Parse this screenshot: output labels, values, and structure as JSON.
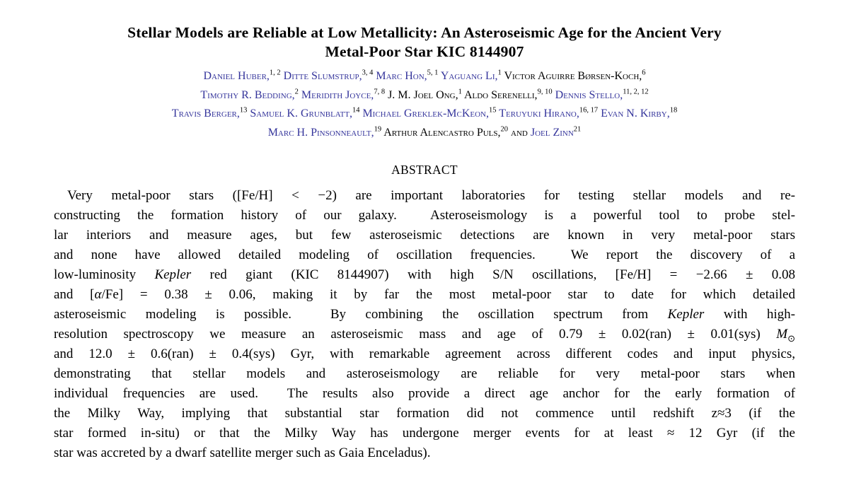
{
  "title": {
    "lines": [
      "Stellar Models are Reliable at Low Metallicity: An Asteroseismic Age for the Ancient Very",
      "Metal-Poor Star KIC 8144907"
    ]
  },
  "colors": {
    "link_blue": "#34349b",
    "text": "#000000",
    "background": "#ffffff"
  },
  "authors": {
    "lines": [
      [
        {
          "text": "Daniel Huber,",
          "sup": "1, 2",
          "link": true
        },
        {
          "text": "Ditte Slumstrup,",
          "sup": "3, 4",
          "link": true
        },
        {
          "text": "Marc Hon,",
          "sup": "5, 1",
          "link": true
        },
        {
          "text": "Yaguang Li,",
          "sup": "1",
          "link": true
        },
        {
          "text": "Victor Aguirre Børsen-Koch,",
          "sup": "6",
          "link": false
        }
      ],
      [
        {
          "text": "Timothy R. Bedding,",
          "sup": "2",
          "link": true
        },
        {
          "text": "Meridith Joyce,",
          "sup": "7, 8",
          "link": true
        },
        {
          "text": "J. M. Joel Ong,",
          "sup": "1",
          "link": false
        },
        {
          "text": "Aldo Serenelli,",
          "sup": "9, 10",
          "link": false
        },
        {
          "text": "Dennis Stello,",
          "sup": "11, 2, 12",
          "link": true
        }
      ],
      [
        {
          "text": "Travis Berger,",
          "sup": "13",
          "link": true
        },
        {
          "text": "Samuel K. Grunblatt,",
          "sup": "14",
          "link": true
        },
        {
          "text": "Michael Greklek-McKeon,",
          "sup": "15",
          "link": true
        },
        {
          "text": "Teruyuki Hirano,",
          "sup": "16, 17",
          "link": true
        },
        {
          "text": "Evan N. Kirby,",
          "sup": "18",
          "link": true
        }
      ],
      [
        {
          "text": "Marc H. Pinsonneault,",
          "sup": "19",
          "link": true
        },
        {
          "text": "Arthur Alencastro Puls,",
          "sup": "20",
          "link": false
        },
        {
          "word": "and"
        },
        {
          "text": "Joel Zinn",
          "sup": "21",
          "link": true
        }
      ]
    ]
  },
  "abstract": {
    "heading": "ABSTRACT",
    "lines": [
      "Very metal-poor stars ([Fe/H] &lt; −2) are important laboratories for testing stellar models and re-",
      "constructing the formation history of our galaxy.&nbsp; Asteroseismology is a powerful tool to probe stel-",
      "lar interiors and measure ages, but few asteroseismic detections are known in very metal-poor stars",
      "and none have allowed detailed modeling of oscillation frequencies.&nbsp; We report the discovery of a",
      "low-luminosity <i>Kepler</i> red giant (KIC 8144907) with high S/N oscillations, [Fe/H] = −2.66 ± 0.08",
      "and [<i>α</i>/Fe] = 0.38 ± 0.06, making it by far the most metal-poor star to date for which detailed",
      "asteroseismic modeling is possible.&nbsp; By combining the oscillation spectrum from <i>Kepler</i> with high-",
      "resolution spectroscopy we measure an asteroseismic mass and age of 0.79 ± 0.02(ran) ± 0.01(sys) <i>M</i><sub>⊙</sub>",
      "and 12.0 ± 0.6(ran) ± 0.4(sys) Gyr, with remarkable agreement across different codes and input physics,",
      "demonstrating that stellar models and asteroseismology are reliable for very metal-poor stars when",
      "individual frequencies are used.&nbsp; The results also provide a direct age anchor for the early formation of",
      "the Milky Way, implying that substantial star formation did not commence until redshift z≈3 (if the",
      "star formed in-situ) or that the Milky Way has undergone merger events for at least ≈ 12 Gyr (if the",
      "star was accreted by a dwarf satellite merger such as Gaia Enceladus)."
    ]
  }
}
